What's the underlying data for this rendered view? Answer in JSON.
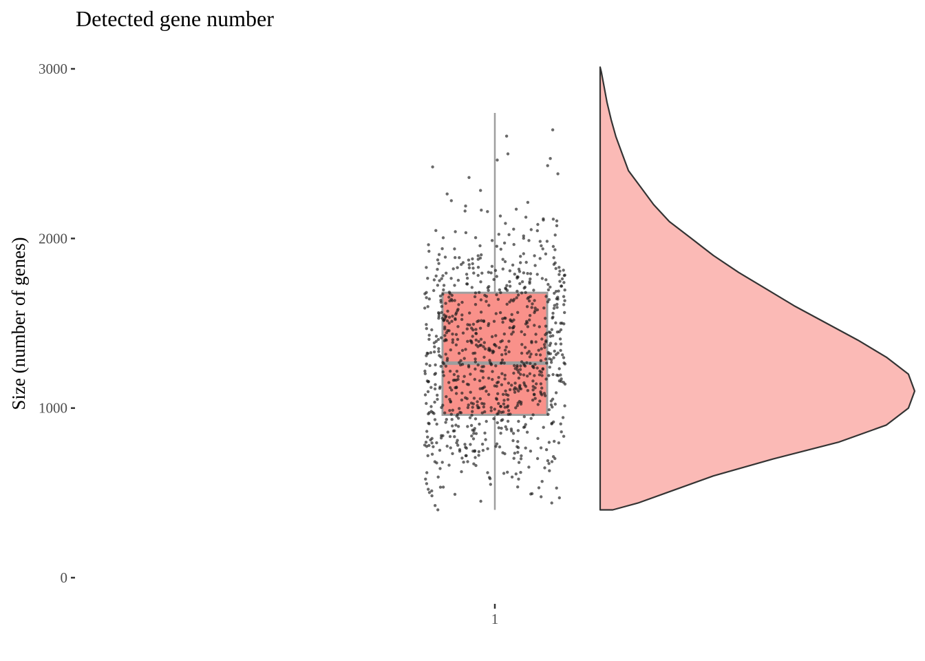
{
  "chart_data": {
    "type": "raincloud",
    "title": "Detected gene number",
    "xlabel": "",
    "ylabel": "Size (number of genes)",
    "categories": [
      "1"
    ],
    "ylim": [
      0,
      3000
    ],
    "yticks": [
      0,
      1000,
      2000,
      3000
    ],
    "grid": false,
    "legend": "none",
    "boxplot": {
      "category": "1",
      "whisker_low": 400,
      "q1": 960,
      "median": 1265,
      "q3": 1680,
      "whisker_high": 2740
    },
    "density": {
      "range": [
        400,
        3010
      ],
      "curve": [
        {
          "y": 400,
          "density": 0.04
        },
        {
          "y": 440,
          "density": 0.12
        },
        {
          "y": 500,
          "density": 0.21
        },
        {
          "y": 600,
          "density": 0.36
        },
        {
          "y": 700,
          "density": 0.55
        },
        {
          "y": 800,
          "density": 0.76
        },
        {
          "y": 900,
          "density": 0.91
        },
        {
          "y": 1000,
          "density": 0.98
        },
        {
          "y": 1100,
          "density": 1.0
        },
        {
          "y": 1200,
          "density": 0.98
        },
        {
          "y": 1300,
          "density": 0.91
        },
        {
          "y": 1400,
          "density": 0.82
        },
        {
          "y": 1500,
          "density": 0.72
        },
        {
          "y": 1600,
          "density": 0.62
        },
        {
          "y": 1700,
          "density": 0.53
        },
        {
          "y": 1800,
          "density": 0.44
        },
        {
          "y": 1900,
          "density": 0.36
        },
        {
          "y": 2000,
          "density": 0.29
        },
        {
          "y": 2100,
          "density": 0.22
        },
        {
          "y": 2200,
          "density": 0.17
        },
        {
          "y": 2300,
          "density": 0.13
        },
        {
          "y": 2400,
          "density": 0.09
        },
        {
          "y": 2500,
          "density": 0.07
        },
        {
          "y": 2600,
          "density": 0.05
        },
        {
          "y": 2700,
          "density": 0.035
        },
        {
          "y": 2800,
          "density": 0.022
        },
        {
          "y": 2900,
          "density": 0.012
        },
        {
          "y": 2980,
          "density": 0.004
        },
        {
          "y": 3010,
          "density": 0.0
        }
      ]
    },
    "points": {
      "n": 900,
      "min": 400,
      "max": 2870,
      "mean": 1310,
      "sd": 440
    },
    "colors": {
      "box_fill": "#f8766d",
      "violin_fill": "#f8766d",
      "box_line": "#9e9e9e",
      "point": "#1a1a1a",
      "violin_line": "#333333",
      "axis": "#333333"
    }
  }
}
